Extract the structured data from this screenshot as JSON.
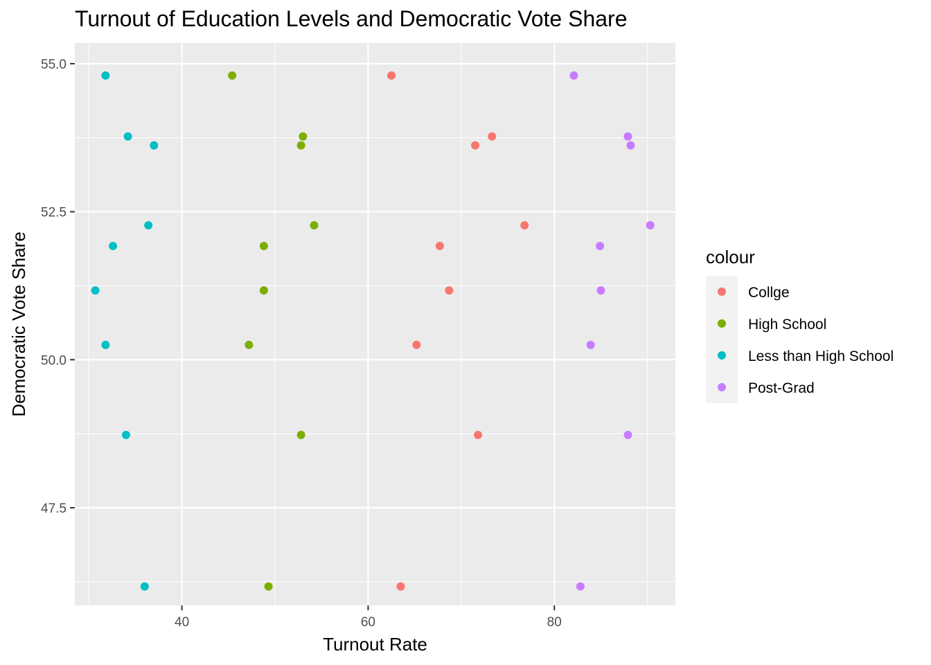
{
  "chart_data": {
    "type": "scatter",
    "title": "Turnout of Education Levels and Democratic Vote Share",
    "xlabel": "Turnout Rate",
    "ylabel": "Democratic Vote Share",
    "xlim": [
      28.5,
      93
    ],
    "ylim": [
      45.85,
      55.35
    ],
    "x_ticks": [
      40,
      60,
      80
    ],
    "x_tick_labels": [
      "40",
      "60",
      "80"
    ],
    "x_minor_ticks": [
      30,
      50,
      70,
      90
    ],
    "y_ticks": [
      47.5,
      50.0,
      52.5,
      55.0
    ],
    "y_tick_labels": [
      "47.5",
      "50.0",
      "52.5",
      "55.0"
    ],
    "y_minor_ticks": [
      46.25,
      48.75,
      51.25,
      53.75
    ],
    "grid": true,
    "legend": {
      "title": "colour",
      "position": "right"
    },
    "series": [
      {
        "name": "Collge",
        "color": "#F8766D",
        "points": [
          [
            62.5,
            54.8
          ],
          [
            71.5,
            53.62
          ],
          [
            73.3,
            53.77
          ],
          [
            76.8,
            52.27
          ],
          [
            67.7,
            51.92
          ],
          [
            68.7,
            51.17
          ],
          [
            65.2,
            50.25
          ],
          [
            71.8,
            48.73
          ],
          [
            63.5,
            46.17
          ]
        ]
      },
      {
        "name": "High School",
        "color": "#7CAE00",
        "points": [
          [
            45.4,
            54.8
          ],
          [
            52.8,
            53.62
          ],
          [
            53.0,
            53.77
          ],
          [
            54.2,
            52.27
          ],
          [
            48.8,
            51.92
          ],
          [
            48.8,
            51.17
          ],
          [
            47.2,
            50.25
          ],
          [
            52.8,
            48.73
          ],
          [
            49.3,
            46.17
          ]
        ]
      },
      {
        "name": "Less than High School",
        "color": "#00BFC4",
        "points": [
          [
            31.8,
            54.8
          ],
          [
            34.2,
            53.77
          ],
          [
            37.0,
            53.62
          ],
          [
            36.4,
            52.27
          ],
          [
            32.6,
            51.92
          ],
          [
            30.7,
            51.17
          ],
          [
            31.8,
            50.25
          ],
          [
            34.0,
            48.73
          ],
          [
            36.0,
            46.17
          ]
        ]
      },
      {
        "name": "Post-Grad",
        "color": "#C77CFF",
        "points": [
          [
            82.1,
            54.8
          ],
          [
            87.9,
            53.77
          ],
          [
            88.2,
            53.62
          ],
          [
            90.3,
            52.27
          ],
          [
            84.9,
            51.92
          ],
          [
            85.0,
            51.17
          ],
          [
            83.9,
            50.25
          ],
          [
            87.9,
            48.73
          ],
          [
            82.8,
            46.17
          ]
        ]
      }
    ]
  }
}
